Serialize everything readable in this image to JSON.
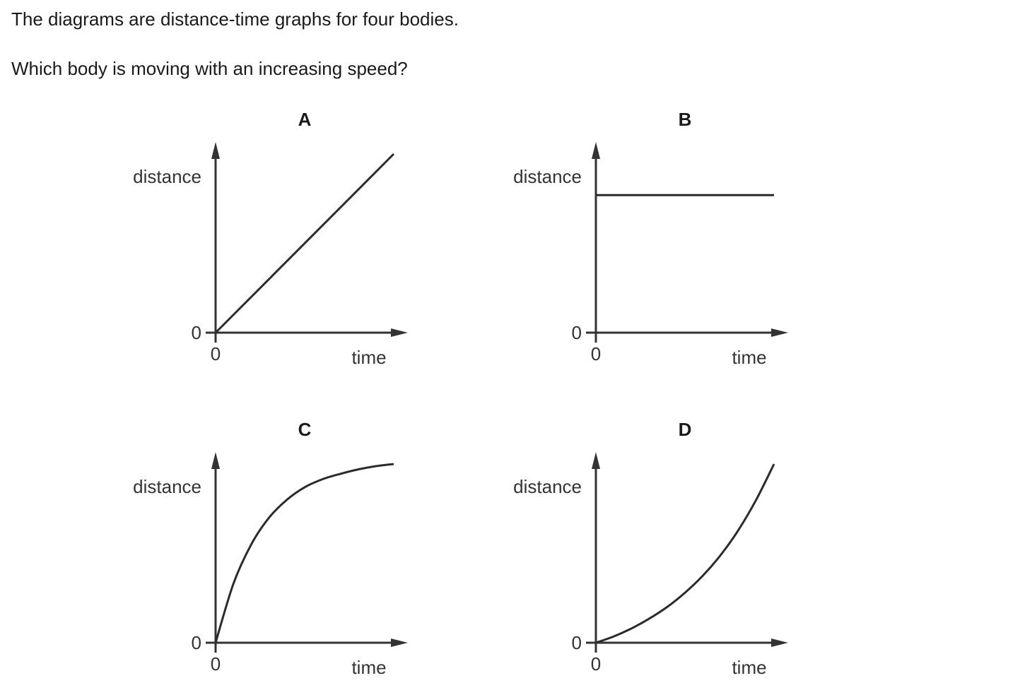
{
  "question": {
    "intro": "The diagrams are distance-time graphs for four bodies.",
    "prompt": "Which body is moving with an increasing speed?"
  },
  "chart_data": [
    {
      "type": "line",
      "title": "A",
      "xlabel": "time",
      "ylabel": "distance",
      "x_origin_label": "0",
      "y_origin_label": "0",
      "shape": "linear",
      "x": [
        0,
        1
      ],
      "y": [
        0,
        1
      ],
      "xlim": [
        0,
        1.08
      ],
      "ylim": [
        0,
        1.07
      ]
    },
    {
      "type": "line",
      "title": "B",
      "xlabel": "time",
      "ylabel": "distance",
      "x_origin_label": "0",
      "y_origin_label": "0",
      "shape": "constant",
      "x": [
        0,
        1
      ],
      "y": [
        0.77,
        0.77
      ],
      "xlim": [
        0,
        1.08
      ],
      "ylim": [
        0,
        1.07
      ]
    },
    {
      "type": "line",
      "title": "C",
      "xlabel": "time",
      "ylabel": "distance",
      "x_origin_label": "0",
      "y_origin_label": "0",
      "shape": "concave",
      "x": [
        0,
        0.1,
        0.2,
        0.3,
        0.4,
        0.5,
        0.6,
        0.7,
        0.8,
        0.9,
        1.0
      ],
      "y": [
        0,
        0.33,
        0.55,
        0.7,
        0.8,
        0.87,
        0.915,
        0.945,
        0.97,
        0.988,
        1.0
      ],
      "xlim": [
        0,
        1.03
      ],
      "ylim": [
        0,
        1.07
      ]
    },
    {
      "type": "line",
      "title": "D",
      "xlabel": "time",
      "ylabel": "distance",
      "x_origin_label": "0",
      "y_origin_label": "0",
      "shape": "convex",
      "x": [
        0,
        0.1,
        0.2,
        0.3,
        0.4,
        0.5,
        0.6,
        0.7,
        0.8,
        0.9,
        1.0
      ],
      "y": [
        0,
        0.035,
        0.08,
        0.135,
        0.2,
        0.28,
        0.375,
        0.49,
        0.63,
        0.8,
        1.0
      ],
      "xlim": [
        0,
        1.06
      ],
      "ylim": [
        0,
        1.07
      ]
    }
  ]
}
